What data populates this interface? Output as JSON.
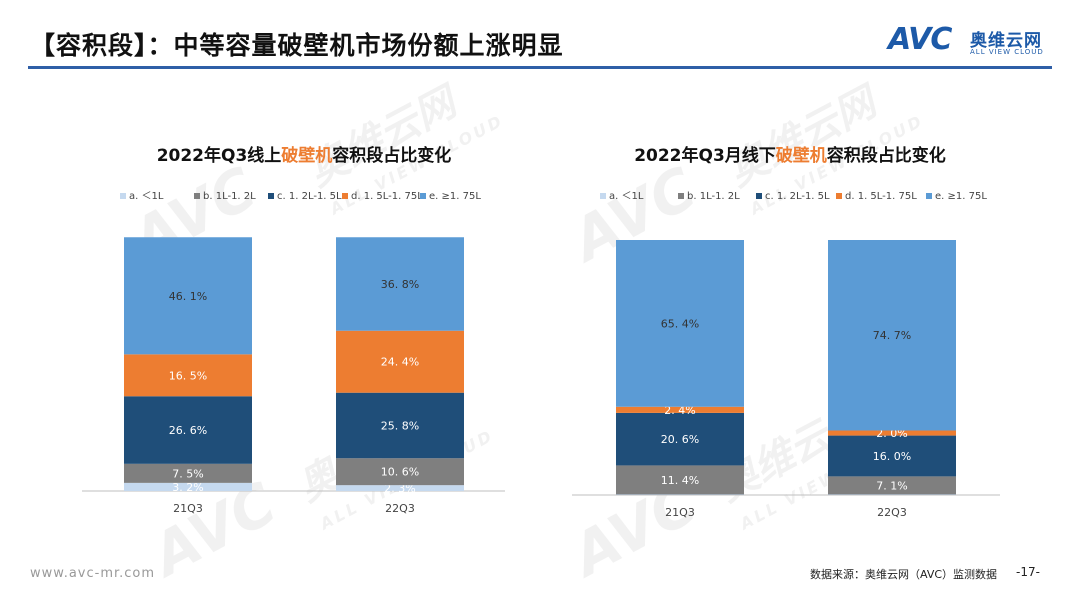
{
  "header": {
    "title": "【容积段】：中等容量破壁机市场份额上涨明显",
    "logo_mark": "AVC",
    "logo_cn": "奥维云网",
    "logo_en": "ALL VIEW CLOUD"
  },
  "watermark": {
    "mark": "AVC",
    "cn": "奥维云网",
    "en": "ALL VIEW CLOUD"
  },
  "colors": {
    "a": "#c5d9ef",
    "b": "#7f7f7f",
    "c": "#1f4e79",
    "d": "#ed7d31",
    "e": "#5b9bd5"
  },
  "chart_data": [
    {
      "type": "bar",
      "stacked": true,
      "title_parts": [
        "2022年Q3线上",
        "破壁机",
        "容积段占比变化"
      ],
      "highlight_color": "#ed7d31",
      "categories": [
        "21Q3",
        "22Q3"
      ],
      "ylim": [
        0,
        100
      ],
      "legend": [
        "a. ＜1L",
        "b. 1L-1. 2L",
        "c. 1. 2L-1. 5L",
        "d. 1. 5L-1. 75L",
        "e. ≥1. 75L"
      ],
      "legend_position": "top",
      "series": [
        {
          "key": "a",
          "values": [
            3.2,
            2.3
          ],
          "labels": [
            "3. 2%",
            "2. 3%"
          ]
        },
        {
          "key": "b",
          "values": [
            7.5,
            10.6
          ],
          "labels": [
            "7. 5%",
            "10. 6%"
          ]
        },
        {
          "key": "c",
          "values": [
            26.6,
            25.8
          ],
          "labels": [
            "26. 6%",
            "25. 8%"
          ]
        },
        {
          "key": "d",
          "values": [
            16.5,
            24.4
          ],
          "labels": [
            "16. 5%",
            "24. 4%"
          ]
        },
        {
          "key": "e",
          "values": [
            46.1,
            36.8
          ],
          "labels": [
            "46. 1%",
            "36. 8%"
          ]
        }
      ]
    },
    {
      "type": "bar",
      "stacked": true,
      "title_parts": [
        "2022年Q3月线下",
        "破壁机",
        "容积段占比变化"
      ],
      "highlight_color": "#ed7d31",
      "categories": [
        "21Q3",
        "22Q3"
      ],
      "ylim": [
        0,
        100
      ],
      "legend": [
        "a. ＜1L",
        "b. 1L-1. 2L",
        "c. 1. 2L-1. 5L",
        "d. 1. 5L-1. 75L",
        "e. ≥1. 75L"
      ],
      "legend_position": "top",
      "series": [
        {
          "key": "a",
          "values": [
            0.2,
            0.2
          ],
          "labels": [
            "",
            ""
          ]
        },
        {
          "key": "b",
          "values": [
            11.4,
            7.1
          ],
          "labels": [
            "11. 4%",
            "7. 1%"
          ]
        },
        {
          "key": "c",
          "values": [
            20.6,
            16.0
          ],
          "labels": [
            "20. 6%",
            "16. 0%"
          ]
        },
        {
          "key": "d",
          "values": [
            2.4,
            2.0
          ],
          "labels": [
            "2. 4%",
            "2. 0%"
          ]
        },
        {
          "key": "e",
          "values": [
            65.4,
            74.7
          ],
          "labels": [
            "65. 4%",
            "74. 7%"
          ]
        }
      ]
    }
  ],
  "footer": {
    "url": "www.avc-mr.com",
    "source": "数据来源：奥维云网（AVC）监测数据",
    "page": "-17-"
  }
}
